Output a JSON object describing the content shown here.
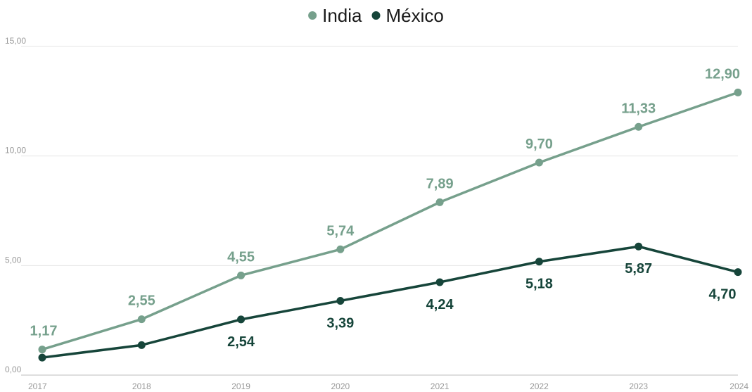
{
  "chart_data": {
    "type": "line",
    "title": "",
    "xlabel": "",
    "ylabel": "",
    "x": [
      "2017",
      "2018",
      "2019",
      "2020",
      "2021",
      "2022",
      "2023",
      "2024"
    ],
    "ylim": [
      0,
      15
    ],
    "y_ticks": [
      "0,00",
      "5,00",
      "10,00",
      "15,00"
    ],
    "grid": true,
    "legend": "top-center",
    "series": [
      {
        "name": "India",
        "color": "#76a08c",
        "values": [
          1.17,
          2.55,
          4.55,
          5.74,
          7.89,
          9.7,
          11.33,
          12.9
        ],
        "labels": [
          "1,17",
          "2,55",
          "4,55",
          "5,74",
          "7,89",
          "9,70",
          "11,33",
          "12,90"
        ],
        "label_position": "above"
      },
      {
        "name": "México",
        "color": "#16453a",
        "values": [
          0.8,
          1.37,
          2.54,
          3.39,
          4.24,
          5.18,
          5.87,
          4.7
        ],
        "labels": [
          "",
          "",
          "2,54",
          "3,39",
          "4,24",
          "5,18",
          "5,87",
          "4,70"
        ],
        "label_position": "below"
      }
    ]
  }
}
